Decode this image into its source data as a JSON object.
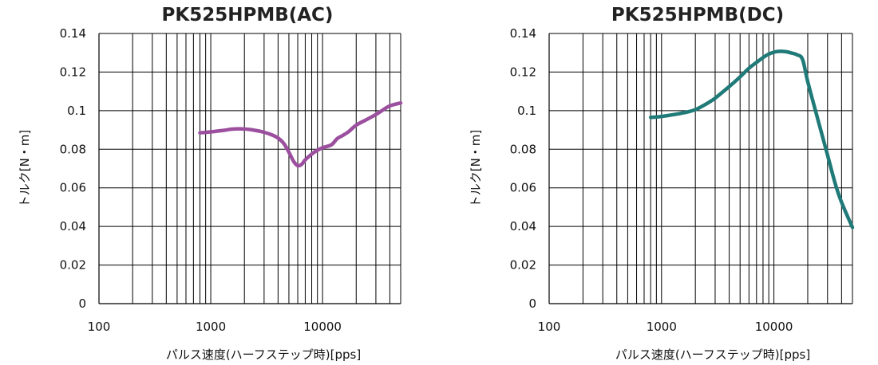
{
  "chart_data": [
    {
      "type": "line",
      "title": "PK525HPMB(AC)",
      "xlabel": "パルス速度(ハーフステップ時)[pps]",
      "ylabel": "トルク[N・m]",
      "x_scale": "log",
      "xlim": [
        100,
        50000
      ],
      "ylim": [
        0,
        0.14
      ],
      "x_ticks": [
        "100",
        "1000",
        "10000"
      ],
      "y_ticks": [
        "0",
        "0.02",
        "0.04",
        "0.06",
        "0.08",
        "0.1",
        "0.12",
        "0.14"
      ],
      "grid": true,
      "color": "#9b4f9e",
      "series": [
        {
          "x": [
            800,
            1000,
            1300,
            1600,
            2000,
            2500,
            3000,
            3500,
            4000,
            4500,
            5000,
            5500,
            6000,
            6500,
            7000,
            8000,
            9000,
            10000,
            12000,
            13500,
            15000,
            17000,
            20000,
            25000,
            30000,
            35000,
            40000,
            50000
          ],
          "y": [
            0.0885,
            0.089,
            0.0898,
            0.0905,
            0.0905,
            0.0898,
            0.0888,
            0.0875,
            0.0858,
            0.083,
            0.0785,
            0.0738,
            0.0715,
            0.0722,
            0.0745,
            0.0775,
            0.0795,
            0.0808,
            0.0823,
            0.0855,
            0.087,
            0.089,
            0.0925,
            0.0955,
            0.098,
            0.1005,
            0.1025,
            0.104
          ]
        }
      ]
    },
    {
      "type": "line",
      "title": "PK525HPMB(DC)",
      "xlabel": "パルス速度(ハーフステップ時)[pps]",
      "ylabel": "トルク[N・m]",
      "x_scale": "log",
      "xlim": [
        100,
        50000
      ],
      "ylim": [
        0,
        0.14
      ],
      "x_ticks": [
        "100",
        "1000",
        "10000"
      ],
      "y_ticks": [
        "0",
        "0.02",
        "0.04",
        "0.06",
        "0.08",
        "0.1",
        "0.12",
        "0.14"
      ],
      "grid": true,
      "color": "#1f7a78",
      "series": [
        {
          "x": [
            800,
            1000,
            1300,
            1600,
            2000,
            2500,
            3000,
            4000,
            5000,
            6000,
            7000,
            8000,
            9000,
            10000,
            11000,
            12000,
            13000,
            14000,
            16000,
            18000,
            20000,
            25000,
            30000,
            35000,
            40000,
            50000
          ],
          "y": [
            0.0965,
            0.097,
            0.098,
            0.099,
            0.1005,
            0.1035,
            0.1065,
            0.1125,
            0.1175,
            0.122,
            0.125,
            0.1275,
            0.1293,
            0.1303,
            0.1307,
            0.1307,
            0.1305,
            0.13,
            0.129,
            0.1265,
            0.115,
            0.094,
            0.077,
            0.0625,
            0.0525,
            0.0395
          ]
        }
      ]
    }
  ]
}
